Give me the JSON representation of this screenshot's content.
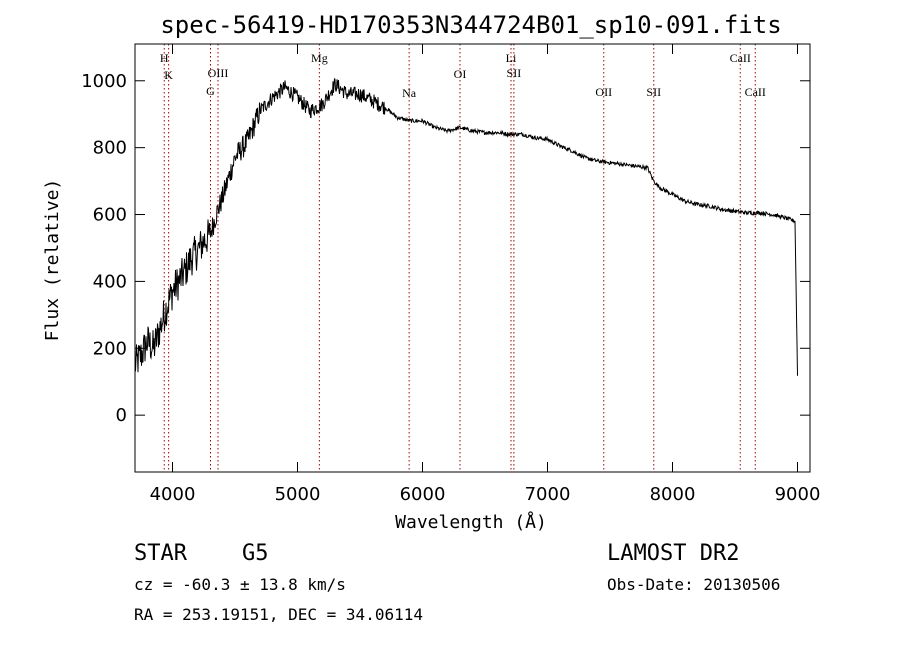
{
  "chart_data": {
    "type": "line",
    "title": "spec-56419-HD170353N344724B01_sp10-091.fits",
    "xlabel": "Wavelength (Å)",
    "ylabel": "Flux (relative)",
    "xlim": [
      3700,
      9100
    ],
    "ylim": [
      -170,
      1110
    ],
    "x_ticks": [
      4000,
      5000,
      6000,
      7000,
      8000,
      9000
    ],
    "y_ticks": [
      0,
      200,
      400,
      600,
      800,
      1000
    ],
    "series": [
      {
        "x": [
          3700,
          3750,
          3800,
          3850,
          3900,
          3950,
          4000,
          4050,
          4100,
          4150,
          4200,
          4250,
          4300,
          4350,
          4400,
          4450,
          4500,
          4600,
          4700,
          4800,
          4900,
          5000,
          5100,
          5200,
          5300,
          5400,
          5500,
          5600,
          5700,
          5800,
          5900,
          6000,
          6100,
          6200,
          6300,
          6400,
          6500,
          6600,
          6700,
          6800,
          6900,
          7000,
          7100,
          7200,
          7300,
          7400,
          7500,
          7600,
          7700,
          7800,
          7850,
          7900,
          8000,
          8100,
          8200,
          8300,
          8400,
          8500,
          8600,
          8700,
          8800,
          8900,
          8980,
          9000
        ],
        "y": [
          150,
          180,
          220,
          200,
          260,
          320,
          370,
          400,
          430,
          470,
          490,
          520,
          540,
          600,
          650,
          710,
          770,
          820,
          910,
          950,
          980,
          950,
          910,
          930,
          990,
          960,
          960,
          940,
          920,
          890,
          880,
          880,
          860,
          850,
          860,
          850,
          845,
          845,
          840,
          840,
          830,
          825,
          805,
          790,
          770,
          760,
          755,
          750,
          745,
          740,
          700,
          680,
          660,
          640,
          630,
          625,
          615,
          610,
          605,
          605,
          600,
          590,
          580,
          120
        ]
      }
    ],
    "lines": [
      {
        "x": 3934,
        "label": "H"
      },
      {
        "x": 3969,
        "label": "K"
      },
      {
        "x": 4304,
        "label": "G"
      },
      {
        "x": 4364,
        "label": "OIII"
      },
      {
        "x": 5175,
        "label": "Mg"
      },
      {
        "x": 5893,
        "label": "Na"
      },
      {
        "x": 6300,
        "label": "OI"
      },
      {
        "x": 6708,
        "label": "Li"
      },
      {
        "x": 6731,
        "label": "SII"
      },
      {
        "x": 7450,
        "label": "OII"
      },
      {
        "x": 7850,
        "label": "SII"
      },
      {
        "x": 8542,
        "label": "CaII"
      },
      {
        "x": 8662,
        "label": "CaII"
      }
    ]
  },
  "info": {
    "star": "STAR",
    "type": "G5",
    "survey": "LAMOST DR2",
    "cz": "cz = -60.3 ± 13.8 km/s",
    "obs_date": "Obs-Date: 20130506",
    "radec": "RA = 253.19151, DEC =  34.06114"
  }
}
